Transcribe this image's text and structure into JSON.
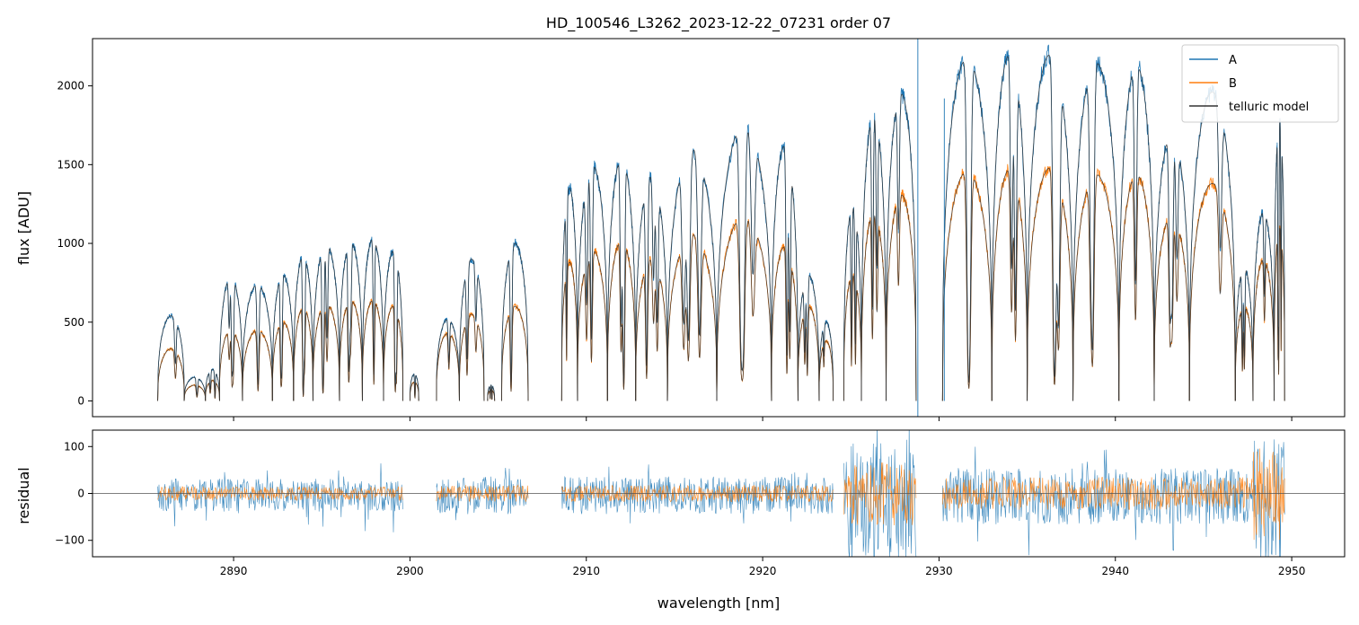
{
  "chart_data": [
    {
      "type": "line",
      "title": "HD_100546_L3262_2023-12-22_07231  order 07",
      "xlabel": "",
      "ylabel": "flux [ADU]",
      "xlim": [
        2882,
        2953
      ],
      "ylim": [
        -100,
        2300
      ],
      "yticks": [
        0,
        500,
        1000,
        1500,
        2000
      ],
      "ytick_labels": [
        "0",
        "500",
        "1000",
        "1500",
        "2000"
      ],
      "legend": {
        "position": "top-right",
        "entries": [
          {
            "name": "A",
            "color": "#1f77b4"
          },
          {
            "name": "B",
            "color": "#ff7f0e"
          },
          {
            "name": "telluric model",
            "color": "#333333"
          }
        ]
      },
      "segments": [
        {
          "start": 2885.7,
          "end": 2887.2,
          "plateau_A": 540,
          "plateau_B": 330
        },
        {
          "start": 2887.2,
          "end": 2888.4,
          "plateau_A": 150,
          "plateau_B": 100
        },
        {
          "start": 2888.4,
          "end": 2889.2,
          "plateau_A": 200,
          "plateau_B": 130
        },
        {
          "start": 2889.2,
          "end": 2890.5,
          "plateau_A": 790,
          "plateau_B": 450
        },
        {
          "start": 2890.5,
          "end": 2892.2,
          "plateau_A": 740,
          "plateau_B": 450
        },
        {
          "start": 2892.2,
          "end": 2893.4,
          "plateau_A": 800,
          "plateau_B": 500
        },
        {
          "start": 2893.4,
          "end": 2894.5,
          "plateau_A": 920,
          "plateau_B": 590
        },
        {
          "start": 2894.5,
          "end": 2896.0,
          "plateau_A": 1000,
          "plateau_B": 620
        },
        {
          "start": 2896.0,
          "end": 2897.3,
          "plateau_A": 1010,
          "plateau_B": 640
        },
        {
          "start": 2897.3,
          "end": 2898.5,
          "plateau_A": 1030,
          "plateau_B": 640
        },
        {
          "start": 2898.5,
          "end": 2899.6,
          "plateau_A": 950,
          "plateau_B": 600
        },
        {
          "start": 2900.0,
          "end": 2900.5,
          "plateau_A": 170,
          "plateau_B": 120
        },
        {
          "start": 2901.5,
          "end": 2902.8,
          "plateau_A": 520,
          "plateau_B": 430
        },
        {
          "start": 2902.8,
          "end": 2904.2,
          "plateau_A": 900,
          "plateau_B": 550
        },
        {
          "start": 2904.4,
          "end": 2904.8,
          "plateau_A": 100,
          "plateau_B": 70
        },
        {
          "start": 2905.2,
          "end": 2906.7,
          "plateau_A": 1000,
          "plateau_B": 600
        },
        {
          "start": 2908.6,
          "end": 2909.5,
          "plateau_A": 1350,
          "plateau_B": 880
        },
        {
          "start": 2909.5,
          "end": 2911.2,
          "plateau_A": 1500,
          "plateau_B": 960
        },
        {
          "start": 2911.2,
          "end": 2912.8,
          "plateau_A": 1540,
          "plateau_B": 1020
        },
        {
          "start": 2912.8,
          "end": 2914.6,
          "plateau_A": 1430,
          "plateau_B": 900
        },
        {
          "start": 2914.6,
          "end": 2917.4,
          "plateau_A": 1600,
          "plateau_B": 1060
        },
        {
          "start": 2917.4,
          "end": 2920.5,
          "plateau_A": 1760,
          "plateau_B": 1180
        },
        {
          "start": 2920.5,
          "end": 2922.0,
          "plateau_A": 1620,
          "plateau_B": 980
        },
        {
          "start": 2922.0,
          "end": 2923.2,
          "plateau_A": 800,
          "plateau_B": 600
        },
        {
          "start": 2923.2,
          "end": 2924.0,
          "plateau_A": 500,
          "plateau_B": 380
        },
        {
          "start": 2924.6,
          "end": 2925.6,
          "plateau_A": 1230,
          "plateau_B": 800
        },
        {
          "start": 2925.6,
          "end": 2927.0,
          "plateau_A": 1820,
          "plateau_B": 1200
        },
        {
          "start": 2927.0,
          "end": 2928.7,
          "plateau_A": 1950,
          "plateau_B": 1310
        },
        {
          "start": 2930.2,
          "end": 2933.0,
          "plateau_A": 2180,
          "plateau_B": 1460
        },
        {
          "start": 2933.0,
          "end": 2935.0,
          "plateau_A": 2200,
          "plateau_B": 1470
        },
        {
          "start": 2935.0,
          "end": 2937.6,
          "plateau_A": 2200,
          "plateau_B": 1480
        },
        {
          "start": 2937.6,
          "end": 2940.2,
          "plateau_A": 2150,
          "plateau_B": 1440
        },
        {
          "start": 2940.2,
          "end": 2942.2,
          "plateau_A": 2130,
          "plateau_B": 1440
        },
        {
          "start": 2942.2,
          "end": 2944.2,
          "plateau_A": 1700,
          "plateau_B": 1180
        },
        {
          "start": 2944.2,
          "end": 2946.8,
          "plateau_A": 1960,
          "plateau_B": 1380
        },
        {
          "start": 2946.8,
          "end": 2947.8,
          "plateau_A": 850,
          "plateau_B": 600
        },
        {
          "start": 2947.8,
          "end": 2949.0,
          "plateau_A": 1200,
          "plateau_B": 900
        },
        {
          "start": 2949.0,
          "end": 2949.6,
          "plateau_A": 1780,
          "plateau_B": 1100
        }
      ],
      "spikes": [
        {
          "x": 2928.8,
          "ymin": -100,
          "ymax": 2300,
          "series": "A"
        },
        {
          "x": 2930.3,
          "ymin": 0,
          "ymax": 1920,
          "series": "A"
        }
      ]
    },
    {
      "type": "line",
      "title": "",
      "xlabel": "wavelength [nm]",
      "ylabel": "residual",
      "xlim": [
        2882,
        2953
      ],
      "ylim": [
        -135,
        135
      ],
      "xticks": [
        2890,
        2900,
        2910,
        2920,
        2930,
        2940,
        2950
      ],
      "xtick_labels": [
        "2890",
        "2900",
        "2910",
        "2920",
        "2930",
        "2940",
        "2950"
      ],
      "yticks": [
        -100,
        0,
        100
      ],
      "ytick_labels": [
        "−100",
        "0",
        "100"
      ],
      "reference_line": 0,
      "noise_bands": [
        {
          "start": 2885.7,
          "end": 2899.6,
          "amp_A": 35,
          "amp_B": 15
        },
        {
          "start": 2901.5,
          "end": 2906.7,
          "amp_A": 40,
          "amp_B": 18
        },
        {
          "start": 2908.6,
          "end": 2924.0,
          "amp_A": 40,
          "amp_B": 18
        },
        {
          "start": 2924.6,
          "end": 2928.7,
          "amp_A": 130,
          "amp_B": 70
        },
        {
          "start": 2930.2,
          "end": 2947.8,
          "amp_A": 60,
          "amp_B": 35
        },
        {
          "start": 2947.8,
          "end": 2949.6,
          "amp_A": 130,
          "amp_B": 100
        }
      ]
    }
  ]
}
